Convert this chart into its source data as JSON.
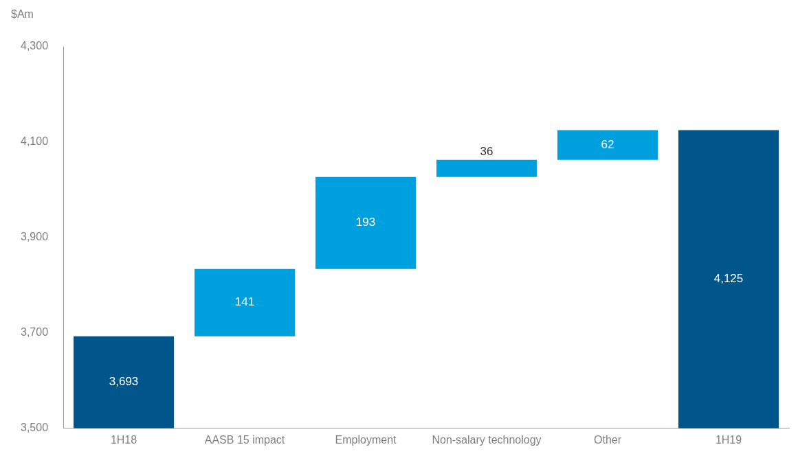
{
  "chart_data": {
    "type": "bar",
    "ylabel": "$Am",
    "categories": [
      "1H18",
      "AASB 15 impact",
      "Employment",
      "Non-salary technology",
      "Other",
      "1H19"
    ],
    "values": [
      3693,
      141,
      193,
      36,
      62,
      4125
    ],
    "base": [
      null,
      3693,
      3834,
      4027,
      4063,
      null
    ],
    "colors": [
      "#00558b",
      "#00a0df",
      "#00a0df",
      "#00a0df",
      "#00a0df",
      "#00558b"
    ],
    "ylim": [
      3500,
      4300
    ],
    "yticks": [
      {
        "value": 3500,
        "label": "3,500"
      },
      {
        "value": 3700,
        "label": "3,700"
      },
      {
        "value": 3900,
        "label": "3,900"
      },
      {
        "value": 4100,
        "label": "4,100"
      },
      {
        "value": 4300,
        "label": "4,300"
      }
    ],
    "value_labels": [
      "3,693",
      "141",
      "193",
      "36",
      "62",
      "4,125"
    ],
    "grid": false,
    "legend": false
  }
}
